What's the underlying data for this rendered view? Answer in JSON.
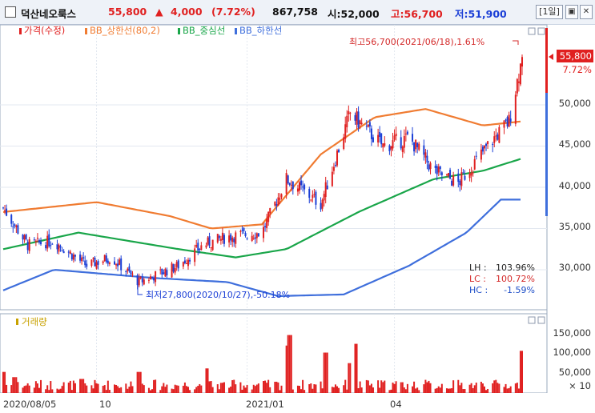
{
  "header": {
    "name": "덕산네오룩스",
    "price": "55,800",
    "change_arrow": "▲",
    "change": "4,000",
    "change_pct": "(7.72%)",
    "volume": "867,758",
    "open": "시:52,000",
    "high": "고:56,700",
    "low": "저:51,900",
    "period": "1일",
    "icons": [
      "checkbox-icon",
      "maximize-icon",
      "close-icon"
    ]
  },
  "price_panel": {
    "legend": [
      "가격(수정)",
      "BB_상한선(80,2)",
      "BB_중심선",
      "BB_하한선"
    ],
    "max_label": "최고56,700(2021/06/18),1.61%",
    "min_label": "최저27,800(2020/10/27),-50.18%",
    "price_tag": "55,800",
    "pct_tag": "7.72%",
    "stats": [
      {
        "label": "LH :",
        "value": "103.96%",
        "color": "#222222"
      },
      {
        "label": "LC :",
        "value": "100.72%",
        "color": "#d42a2a"
      },
      {
        "label": "HC :",
        "value": "-1.59%",
        "color": "#1f4fc8"
      }
    ],
    "y_ticks": [
      "50,000",
      "45,000",
      "40,000",
      "35,000",
      "30,000"
    ]
  },
  "volume_panel": {
    "legend": "거래량",
    "y_ticks": [
      "150,000",
      "100,000",
      "50,000"
    ],
    "unit": "× 10"
  },
  "x_ticks": [
    "2020/08/05",
    "10",
    "2021/01",
    "04"
  ],
  "colors": {
    "up": "#e02020",
    "down": "#1b3fd6",
    "upper": "#f07c32",
    "mid": "#1aa64a",
    "lower": "#3f6fdc",
    "volume": "#e02020"
  },
  "chart_data": {
    "type": "candlestick",
    "x_start": "2020/08/05",
    "x_end": "2021/06/18",
    "y_range": [
      25000,
      58000
    ],
    "close_anchors": [
      {
        "date": "2020/08/05",
        "value": 37500
      },
      {
        "date": "2020/08/20",
        "value": 33000
      },
      {
        "date": "2020/09/05",
        "value": 33500
      },
      {
        "date": "2020/09/25",
        "value": 30500
      },
      {
        "date": "2020/10/10",
        "value": 31500
      },
      {
        "date": "2020/10/27",
        "value": 28500
      },
      {
        "date": "2020/11/20",
        "value": 30500
      },
      {
        "date": "2020/12/05",
        "value": 33000
      },
      {
        "date": "2020/12/20",
        "value": 34000
      },
      {
        "date": "2021/01/10",
        "value": 34500
      },
      {
        "date": "2021/01/25",
        "value": 41000
      },
      {
        "date": "2021/02/15",
        "value": 38000
      },
      {
        "date": "2021/03/05",
        "value": 49000
      },
      {
        "date": "2021/03/25",
        "value": 45000
      },
      {
        "date": "2021/04/10",
        "value": 46000
      },
      {
        "date": "2021/04/25",
        "value": 42000
      },
      {
        "date": "2021/05/10",
        "value": 40500
      },
      {
        "date": "2021/05/30",
        "value": 45500
      },
      {
        "date": "2021/06/10",
        "value": 48000
      },
      {
        "date": "2021/06/18",
        "value": 55800
      }
    ],
    "upper_band": [
      {
        "date": "2020/08/05",
        "value": 37000
      },
      {
        "date": "2020/10/01",
        "value": 38200
      },
      {
        "date": "2020/11/15",
        "value": 36500
      },
      {
        "date": "2020/12/10",
        "value": 35000
      },
      {
        "date": "2021/01/10",
        "value": 35500
      },
      {
        "date": "2021/02/15",
        "value": 44000
      },
      {
        "date": "2021/03/20",
        "value": 48500
      },
      {
        "date": "2021/04/20",
        "value": 49500
      },
      {
        "date": "2021/05/25",
        "value": 47500
      },
      {
        "date": "2021/06/18",
        "value": 48000
      }
    ],
    "middle_band": [
      {
        "date": "2020/08/05",
        "value": 32500
      },
      {
        "date": "2020/09/20",
        "value": 34500
      },
      {
        "date": "2020/11/20",
        "value": 32500
      },
      {
        "date": "2020/12/25",
        "value": 31500
      },
      {
        "date": "2021/01/25",
        "value": 32500
      },
      {
        "date": "2021/03/10",
        "value": 37000
      },
      {
        "date": "2021/04/25",
        "value": 41000
      },
      {
        "date": "2021/05/25",
        "value": 42000
      },
      {
        "date": "2021/06/18",
        "value": 43500
      }
    ],
    "lower_band": [
      {
        "date": "2020/08/05",
        "value": 27500
      },
      {
        "date": "2020/09/05",
        "value": 30000
      },
      {
        "date": "2020/11/05",
        "value": 29000
      },
      {
        "date": "2020/12/20",
        "value": 28500
      },
      {
        "date": "2021/01/20",
        "value": 26800
      },
      {
        "date": "2021/03/01",
        "value": 27000
      },
      {
        "date": "2021/04/10",
        "value": 30500
      },
      {
        "date": "2021/05/15",
        "value": 34500
      },
      {
        "date": "2021/06/05",
        "value": 38500
      },
      {
        "date": "2021/06/18",
        "value": 38500
      }
    ],
    "max": {
      "date": "2021/06/18",
      "value": 56700,
      "pct": "1.61%"
    },
    "min": {
      "date": "2020/10/27",
      "value": 27800,
      "pct": "-50.18%"
    },
    "volume_max": 180000,
    "volume_spikes": [
      {
        "date": "2020/08/05",
        "value": 60000
      },
      {
        "date": "2020/08/12",
        "value": 45000
      },
      {
        "date": "2020/09/22",
        "value": 40000
      },
      {
        "date": "2020/10/27",
        "value": 60000
      },
      {
        "date": "2020/12/07",
        "value": 70000
      },
      {
        "date": "2021/01/25",
        "value": 135000
      },
      {
        "date": "2021/01/27",
        "value": 165000
      },
      {
        "date": "2021/02/18",
        "value": 115000
      },
      {
        "date": "2021/03/08",
        "value": 140000
      },
      {
        "date": "2021/03/05",
        "value": 85000
      },
      {
        "date": "2021/06/18",
        "value": 120000
      }
    ]
  }
}
